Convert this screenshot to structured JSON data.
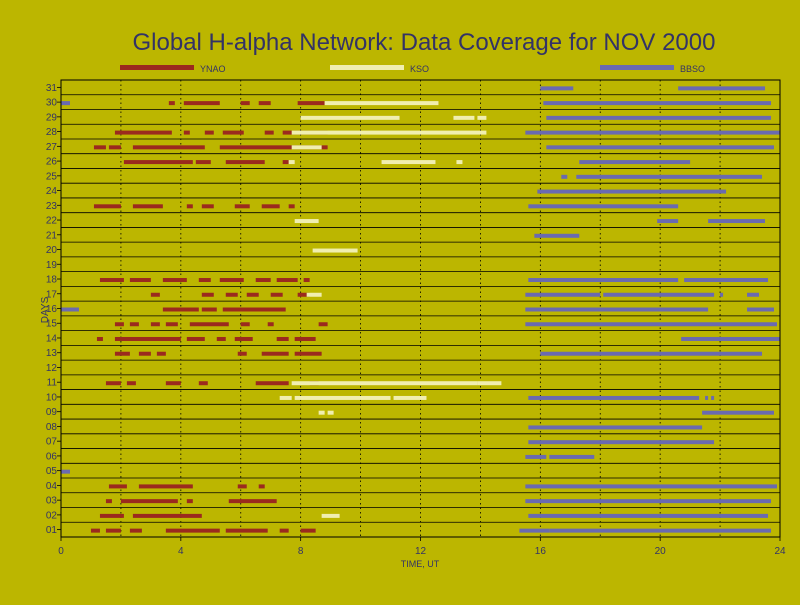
{
  "chart_data": {
    "type": "bar",
    "title": "Global H-alpha Network: Data Coverage for NOV 2000",
    "xlabel": "TIME, UT",
    "ylabel": "DAYS",
    "xlim": [
      0,
      24
    ],
    "ylim": [
      0.5,
      31.5
    ],
    "x_ticks": [
      {
        "value": 0,
        "label": "0"
      },
      {
        "value": 4,
        "label": "4"
      },
      {
        "value": 8,
        "label": "8"
      },
      {
        "value": 12,
        "label": "12"
      },
      {
        "value": 16,
        "label": "16"
      },
      {
        "value": 20,
        "label": "20"
      },
      {
        "value": 24,
        "label": "24"
      }
    ],
    "days": [
      "01",
      "02",
      "03",
      "04",
      "05",
      "06",
      "07",
      "08",
      "09",
      "10",
      "11",
      "12",
      "13",
      "14",
      "15",
      "16",
      "17",
      "18",
      "19",
      "20",
      "21",
      "22",
      "23",
      "24",
      "25",
      "26",
      "27",
      "28",
      "29",
      "30",
      "31"
    ],
    "grid": true,
    "legend_position": "top",
    "series": [
      {
        "name": "YNAO",
        "color": "#9b2a1e",
        "intervals": [
          {
            "day": 1,
            "start": 1.0,
            "end": 1.3
          },
          {
            "day": 1,
            "start": 1.5,
            "end": 2.0
          },
          {
            "day": 1,
            "start": 2.3,
            "end": 2.7
          },
          {
            "day": 1,
            "start": 3.5,
            "end": 5.3
          },
          {
            "day": 1,
            "start": 5.5,
            "end": 6.9
          },
          {
            "day": 1,
            "start": 7.3,
            "end": 7.6
          },
          {
            "day": 1,
            "start": 8.0,
            "end": 8.5
          },
          {
            "day": 2,
            "start": 1.3,
            "end": 2.1
          },
          {
            "day": 2,
            "start": 2.4,
            "end": 4.7
          },
          {
            "day": 3,
            "start": 1.5,
            "end": 1.7
          },
          {
            "day": 3,
            "start": 2.0,
            "end": 3.9
          },
          {
            "day": 3,
            "start": 4.2,
            "end": 4.4
          },
          {
            "day": 3,
            "start": 5.6,
            "end": 7.2
          },
          {
            "day": 4,
            "start": 1.6,
            "end": 2.2
          },
          {
            "day": 4,
            "start": 2.6,
            "end": 4.4
          },
          {
            "day": 4,
            "start": 5.9,
            "end": 6.2
          },
          {
            "day": 4,
            "start": 6.6,
            "end": 6.8
          },
          {
            "day": 11,
            "start": 1.5,
            "end": 2.0
          },
          {
            "day": 11,
            "start": 2.2,
            "end": 2.5
          },
          {
            "day": 11,
            "start": 3.5,
            "end": 4.0
          },
          {
            "day": 11,
            "start": 4.6,
            "end": 4.9
          },
          {
            "day": 11,
            "start": 6.5,
            "end": 7.6
          },
          {
            "day": 11,
            "start": 8.3,
            "end": 8.6
          },
          {
            "day": 13,
            "start": 1.8,
            "end": 2.3
          },
          {
            "day": 13,
            "start": 2.6,
            "end": 3.0
          },
          {
            "day": 13,
            "start": 3.2,
            "end": 3.5
          },
          {
            "day": 13,
            "start": 5.9,
            "end": 6.2
          },
          {
            "day": 13,
            "start": 6.7,
            "end": 7.6
          },
          {
            "day": 13,
            "start": 7.8,
            "end": 8.7
          },
          {
            "day": 14,
            "start": 1.2,
            "end": 1.4
          },
          {
            "day": 14,
            "start": 1.8,
            "end": 4.0
          },
          {
            "day": 14,
            "start": 4.2,
            "end": 4.8
          },
          {
            "day": 14,
            "start": 5.2,
            "end": 5.5
          },
          {
            "day": 14,
            "start": 5.8,
            "end": 6.4
          },
          {
            "day": 14,
            "start": 7.2,
            "end": 7.6
          },
          {
            "day": 14,
            "start": 7.8,
            "end": 8.5
          },
          {
            "day": 15,
            "start": 1.8,
            "end": 2.1
          },
          {
            "day": 15,
            "start": 2.3,
            "end": 2.6
          },
          {
            "day": 15,
            "start": 3.0,
            "end": 3.3
          },
          {
            "day": 15,
            "start": 3.5,
            "end": 3.9
          },
          {
            "day": 15,
            "start": 4.3,
            "end": 5.6
          },
          {
            "day": 15,
            "start": 6.0,
            "end": 6.3
          },
          {
            "day": 15,
            "start": 6.9,
            "end": 7.1
          },
          {
            "day": 15,
            "start": 8.6,
            "end": 8.9
          },
          {
            "day": 16,
            "start": 3.4,
            "end": 4.6
          },
          {
            "day": 16,
            "start": 4.7,
            "end": 5.2
          },
          {
            "day": 16,
            "start": 5.4,
            "end": 7.5
          },
          {
            "day": 17,
            "start": 3.0,
            "end": 3.3
          },
          {
            "day": 17,
            "start": 4.7,
            "end": 5.1
          },
          {
            "day": 17,
            "start": 5.5,
            "end": 5.9
          },
          {
            "day": 17,
            "start": 6.2,
            "end": 6.6
          },
          {
            "day": 17,
            "start": 7.0,
            "end": 7.4
          },
          {
            "day": 17,
            "start": 7.9,
            "end": 8.3
          },
          {
            "day": 18,
            "start": 1.3,
            "end": 2.1
          },
          {
            "day": 18,
            "start": 2.3,
            "end": 3.0
          },
          {
            "day": 18,
            "start": 3.4,
            "end": 4.2
          },
          {
            "day": 18,
            "start": 4.6,
            "end": 5.0
          },
          {
            "day": 18,
            "start": 5.3,
            "end": 6.1
          },
          {
            "day": 18,
            "start": 6.5,
            "end": 7.0
          },
          {
            "day": 18,
            "start": 7.2,
            "end": 7.9
          },
          {
            "day": 18,
            "start": 8.1,
            "end": 8.3
          },
          {
            "day": 23,
            "start": 1.1,
            "end": 2.0
          },
          {
            "day": 23,
            "start": 2.4,
            "end": 3.4
          },
          {
            "day": 23,
            "start": 4.2,
            "end": 4.4
          },
          {
            "day": 23,
            "start": 4.7,
            "end": 5.1
          },
          {
            "day": 23,
            "start": 5.8,
            "end": 6.3
          },
          {
            "day": 23,
            "start": 6.7,
            "end": 7.3
          },
          {
            "day": 23,
            "start": 7.6,
            "end": 7.8
          },
          {
            "day": 26,
            "start": 2.1,
            "end": 4.4
          },
          {
            "day": 26,
            "start": 4.5,
            "end": 5.0
          },
          {
            "day": 26,
            "start": 5.5,
            "end": 6.8
          },
          {
            "day": 26,
            "start": 7.4,
            "end": 7.6
          },
          {
            "day": 27,
            "start": 1.1,
            "end": 1.5
          },
          {
            "day": 27,
            "start": 1.6,
            "end": 2.0
          },
          {
            "day": 27,
            "start": 2.4,
            "end": 4.8
          },
          {
            "day": 27,
            "start": 5.3,
            "end": 8.9
          },
          {
            "day": 28,
            "start": 1.8,
            "end": 3.7
          },
          {
            "day": 28,
            "start": 4.1,
            "end": 4.3
          },
          {
            "day": 28,
            "start": 4.8,
            "end": 5.1
          },
          {
            "day": 28,
            "start": 5.4,
            "end": 6.1
          },
          {
            "day": 28,
            "start": 6.8,
            "end": 7.1
          },
          {
            "day": 28,
            "start": 7.4,
            "end": 8.9
          },
          {
            "day": 30,
            "start": 3.6,
            "end": 3.8
          },
          {
            "day": 30,
            "start": 4.1,
            "end": 5.3
          },
          {
            "day": 30,
            "start": 6.0,
            "end": 6.3
          },
          {
            "day": 30,
            "start": 6.6,
            "end": 7.0
          },
          {
            "day": 30,
            "start": 7.9,
            "end": 8.8
          }
        ]
      },
      {
        "name": "KSO",
        "color": "#f0eeb0",
        "intervals": [
          {
            "day": 2,
            "start": 8.7,
            "end": 9.3
          },
          {
            "day": 9,
            "start": 8.6,
            "end": 8.8
          },
          {
            "day": 9,
            "start": 8.9,
            "end": 9.1
          },
          {
            "day": 10,
            "start": 7.3,
            "end": 7.7
          },
          {
            "day": 10,
            "start": 7.8,
            "end": 11.0
          },
          {
            "day": 10,
            "start": 11.1,
            "end": 12.2
          },
          {
            "day": 11,
            "start": 7.7,
            "end": 13.9
          },
          {
            "day": 11,
            "start": 13.9,
            "end": 14.7
          },
          {
            "day": 17,
            "start": 8.2,
            "end": 8.7
          },
          {
            "day": 20,
            "start": 8.4,
            "end": 9.9
          },
          {
            "day": 22,
            "start": 7.8,
            "end": 8.6
          },
          {
            "day": 26,
            "start": 7.6,
            "end": 7.8
          },
          {
            "day": 26,
            "start": 10.7,
            "end": 12.5
          },
          {
            "day": 26,
            "start": 13.2,
            "end": 13.4
          },
          {
            "day": 27,
            "start": 7.7,
            "end": 8.7
          },
          {
            "day": 28,
            "start": 7.7,
            "end": 14.2
          },
          {
            "day": 29,
            "start": 8.0,
            "end": 11.3
          },
          {
            "day": 29,
            "start": 13.1,
            "end": 13.8
          },
          {
            "day": 29,
            "start": 13.9,
            "end": 14.2
          },
          {
            "day": 30,
            "start": 8.8,
            "end": 12.6
          }
        ]
      },
      {
        "name": "BBSO",
        "color": "#6a6ab0",
        "intervals": [
          {
            "day": 1,
            "start": 15.3,
            "end": 16.3
          },
          {
            "day": 1,
            "start": 16.3,
            "end": 23.7
          },
          {
            "day": 2,
            "start": 15.6,
            "end": 23.6
          },
          {
            "day": 3,
            "start": 15.5,
            "end": 23.7
          },
          {
            "day": 4,
            "start": 15.5,
            "end": 23.9
          },
          {
            "day": 5,
            "start": 0.0,
            "end": 0.3
          },
          {
            "day": 6,
            "start": 15.5,
            "end": 16.2
          },
          {
            "day": 6,
            "start": 16.3,
            "end": 17.8
          },
          {
            "day": 7,
            "start": 15.6,
            "end": 21.8
          },
          {
            "day": 8,
            "start": 15.6,
            "end": 21.4
          },
          {
            "day": 9,
            "start": 21.4,
            "end": 23.8
          },
          {
            "day": 10,
            "start": 15.6,
            "end": 21.3
          },
          {
            "day": 10,
            "start": 21.5,
            "end": 21.6
          },
          {
            "day": 10,
            "start": 21.7,
            "end": 21.8
          },
          {
            "day": 13,
            "start": 16.0,
            "end": 23.4
          },
          {
            "day": 14,
            "start": 20.7,
            "end": 24.0
          },
          {
            "day": 15,
            "start": 15.5,
            "end": 23.9
          },
          {
            "day": 16,
            "start": 0.0,
            "end": 0.6
          },
          {
            "day": 16,
            "start": 15.5,
            "end": 21.6
          },
          {
            "day": 16,
            "start": 22.9,
            "end": 23.8
          },
          {
            "day": 17,
            "start": 15.5,
            "end": 18.0
          },
          {
            "day": 17,
            "start": 18.1,
            "end": 21.8
          },
          {
            "day": 17,
            "start": 22.0,
            "end": 22.1
          },
          {
            "day": 17,
            "start": 22.9,
            "end": 23.3
          },
          {
            "day": 18,
            "start": 15.6,
            "end": 20.6
          },
          {
            "day": 18,
            "start": 20.8,
            "end": 23.6
          },
          {
            "day": 21,
            "start": 15.8,
            "end": 17.3
          },
          {
            "day": 22,
            "start": 19.9,
            "end": 20.6
          },
          {
            "day": 22,
            "start": 21.6,
            "end": 23.5
          },
          {
            "day": 23,
            "start": 15.6,
            "end": 20.6
          },
          {
            "day": 24,
            "start": 15.9,
            "end": 22.2
          },
          {
            "day": 25,
            "start": 16.7,
            "end": 16.9
          },
          {
            "day": 25,
            "start": 17.2,
            "end": 23.4
          },
          {
            "day": 26,
            "start": 17.3,
            "end": 21.0
          },
          {
            "day": 27,
            "start": 16.2,
            "end": 23.8
          },
          {
            "day": 28,
            "start": 15.5,
            "end": 24.0
          },
          {
            "day": 29,
            "start": 16.2,
            "end": 23.7
          },
          {
            "day": 30,
            "start": 0.0,
            "end": 0.3
          },
          {
            "day": 30,
            "start": 16.1,
            "end": 23.7
          },
          {
            "day": 31,
            "start": 16.0,
            "end": 17.1
          },
          {
            "day": 31,
            "start": 20.6,
            "end": 23.5
          }
        ]
      }
    ]
  }
}
